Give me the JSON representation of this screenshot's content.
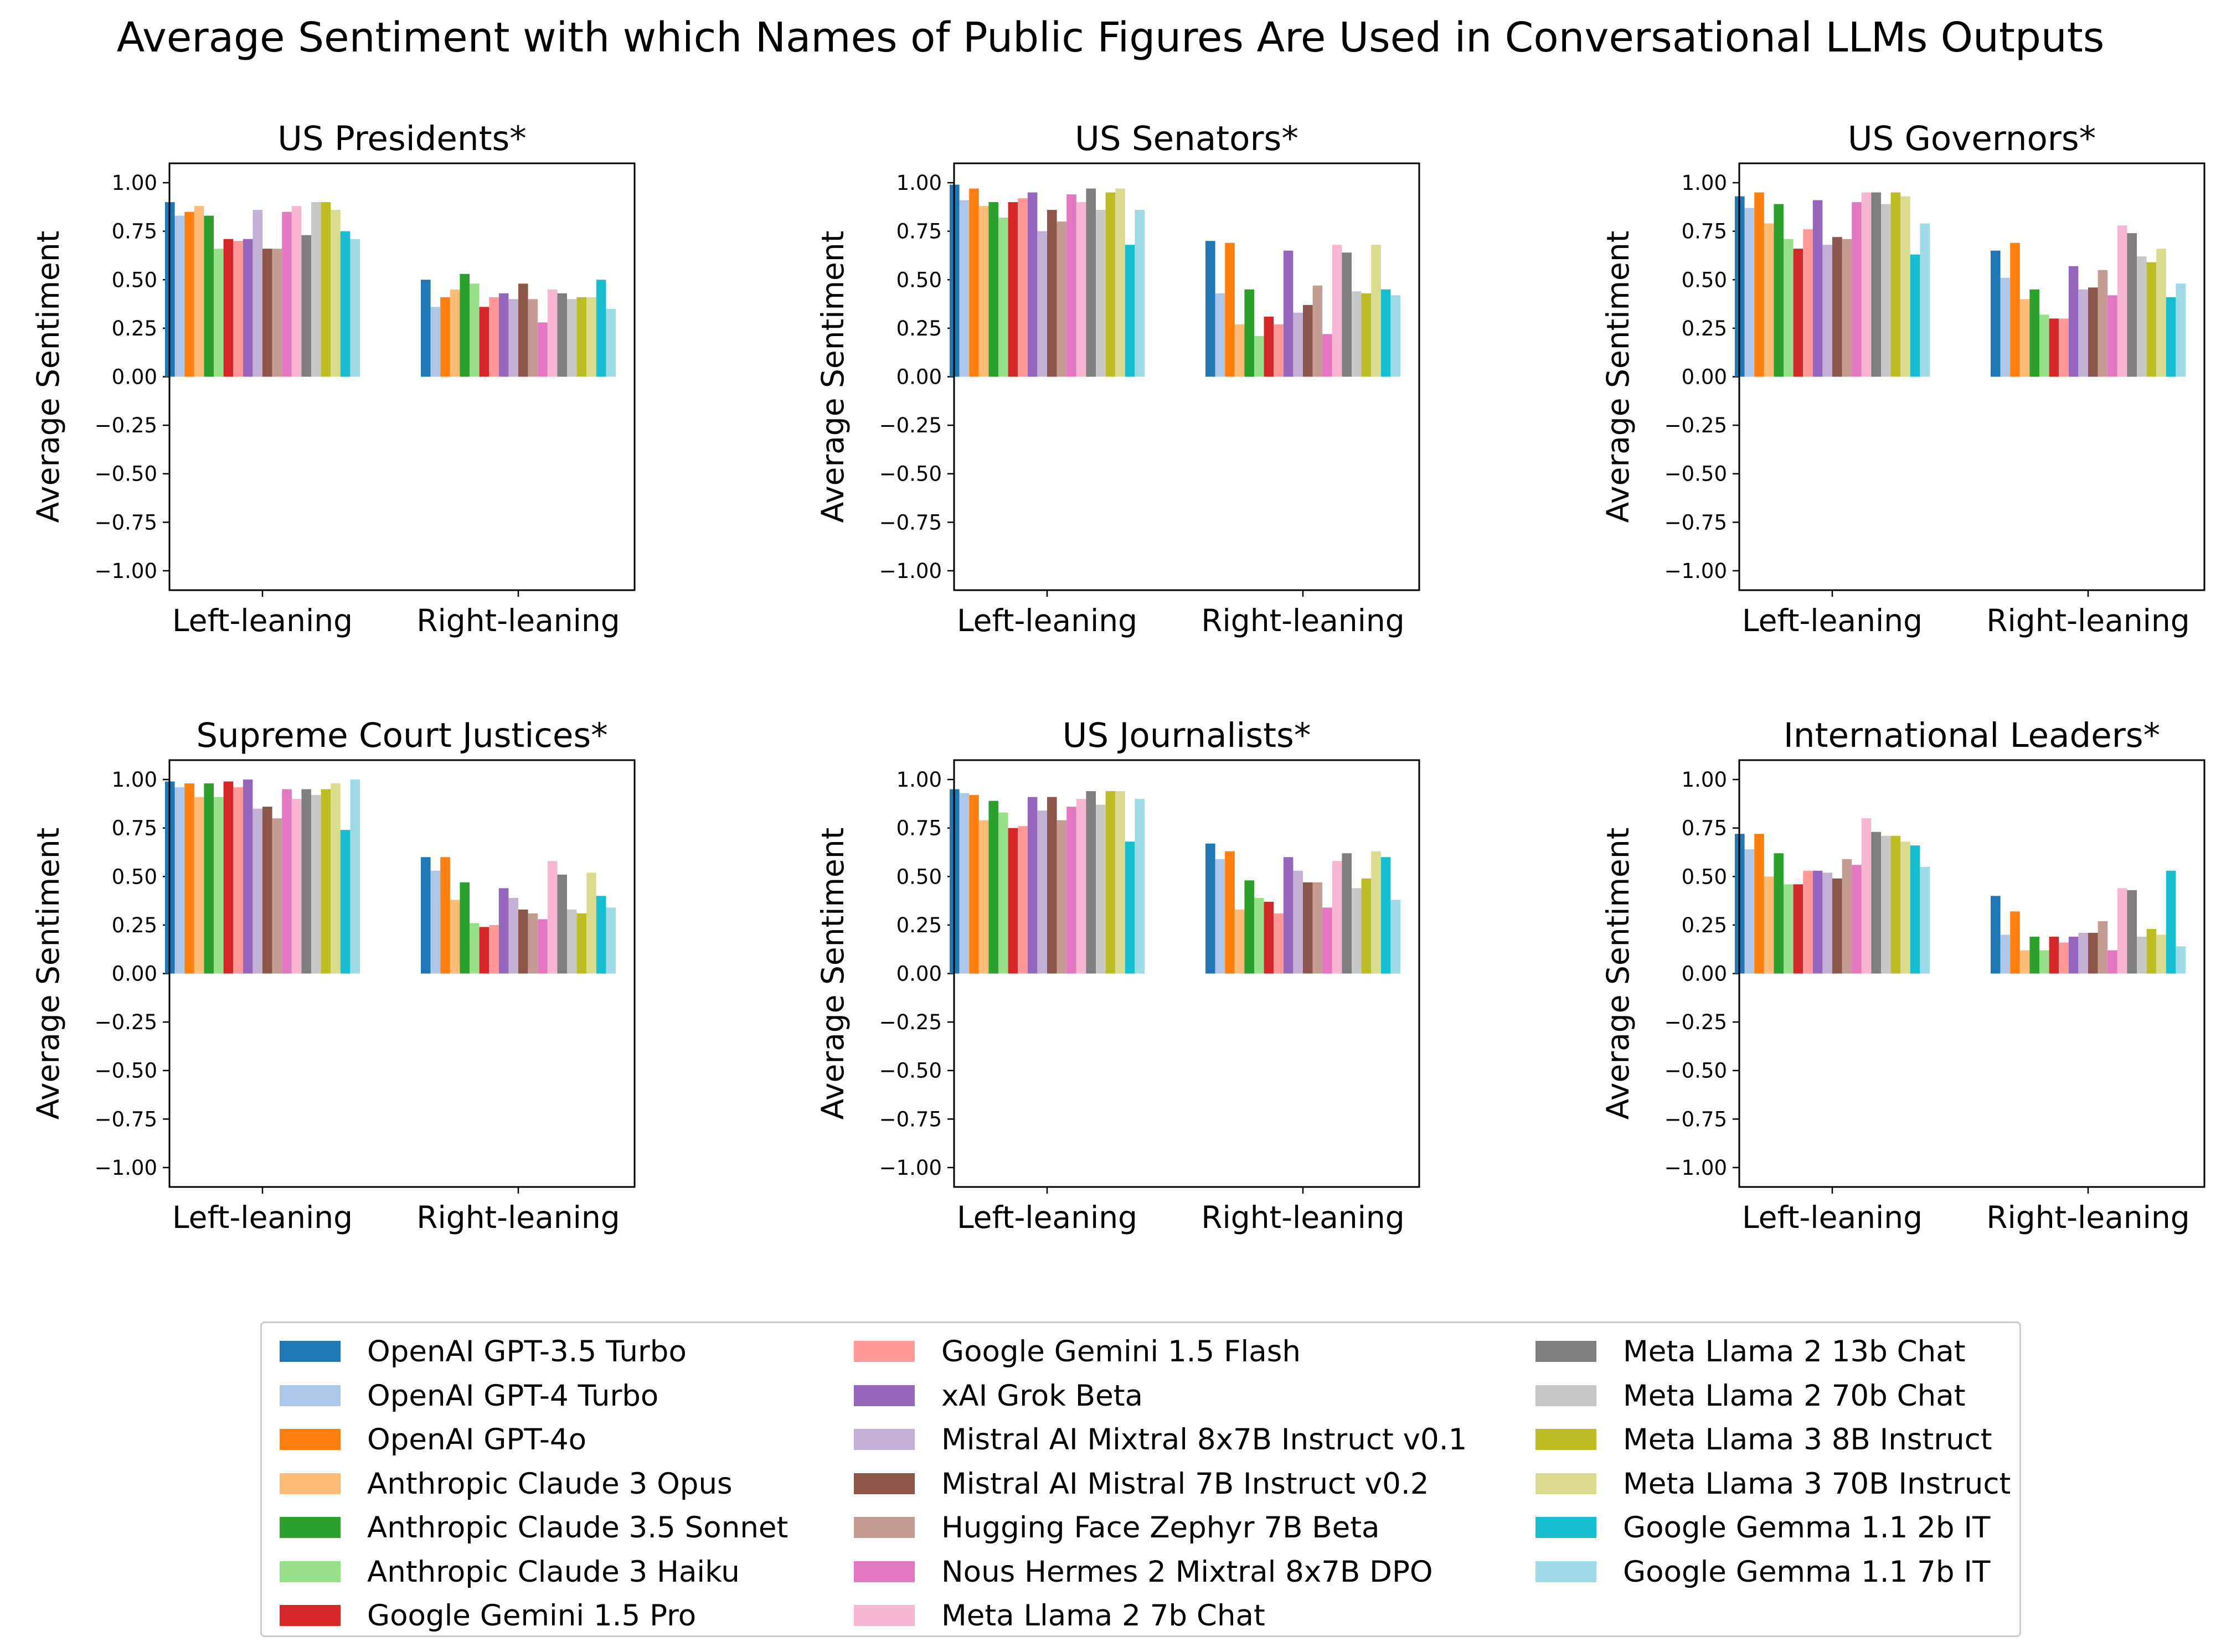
{
  "chart_data": {
    "type": "bar",
    "title": "Average Sentiment with which Names of Public Figures Are Used in Conversational LLMs Outputs",
    "ylabel": "Average Sentiment",
    "ylim": [
      -1.1,
      1.1
    ],
    "yticks": [
      "1.00",
      "0.75",
      "0.50",
      "0.25",
      "0.00",
      "−0.25",
      "−0.50",
      "−0.75",
      "−1.00"
    ],
    "categories": [
      "Left-leaning",
      "Right-leaning"
    ],
    "legend_placement": "bottom-center",
    "series": [
      {
        "name": "OpenAI GPT-3.5 Turbo",
        "color": "#1f77b4"
      },
      {
        "name": "OpenAI GPT-4 Turbo",
        "color": "#aec7e8"
      },
      {
        "name": "OpenAI GPT-4o",
        "color": "#ff7f0e"
      },
      {
        "name": "Anthropic Claude 3 Opus",
        "color": "#ffbb78"
      },
      {
        "name": "Anthropic Claude 3.5 Sonnet",
        "color": "#2ca02c"
      },
      {
        "name": "Anthropic Claude 3 Haiku",
        "color": "#98df8a"
      },
      {
        "name": "Google Gemini 1.5 Pro",
        "color": "#d62728"
      },
      {
        "name": "Google Gemini 1.5 Flash",
        "color": "#ff9896"
      },
      {
        "name": "xAI Grok Beta",
        "color": "#9467bd"
      },
      {
        "name": "Mistral AI Mixtral 8x7B Instruct v0.1",
        "color": "#c5b0d5"
      },
      {
        "name": "Mistral AI Mistral 7B Instruct v0.2",
        "color": "#8c564b"
      },
      {
        "name": "Hugging Face Zephyr 7B Beta",
        "color": "#c49c94"
      },
      {
        "name": "Nous Hermes 2 Mixtral 8x7B DPO",
        "color": "#e377c2"
      },
      {
        "name": "Meta Llama 2 7b Chat",
        "color": "#f7b6d2"
      },
      {
        "name": "Meta Llama 2 13b Chat",
        "color": "#7f7f7f"
      },
      {
        "name": "Meta Llama 2 70b Chat",
        "color": "#c7c7c7"
      },
      {
        "name": "Meta Llama 3 8B Instruct",
        "color": "#bcbd22"
      },
      {
        "name": "Meta Llama 3 70B Instruct",
        "color": "#dbdb8d"
      },
      {
        "name": "Google Gemma 1.1 2b IT",
        "color": "#17becf"
      },
      {
        "name": "Google Gemma 1.1 7b IT",
        "color": "#9edae5"
      }
    ],
    "panels": [
      {
        "title": "US Presidents*",
        "left": [
          0.9,
          0.83,
          0.85,
          0.88,
          0.83,
          0.66,
          0.71,
          0.7,
          0.71,
          0.86,
          0.66,
          0.66,
          0.85,
          0.88,
          0.73,
          0.9,
          0.9,
          0.86,
          0.75,
          0.71
        ],
        "right": [
          0.5,
          0.36,
          0.41,
          0.45,
          0.53,
          0.48,
          0.36,
          0.41,
          0.43,
          0.4,
          0.48,
          0.4,
          0.28,
          0.45,
          0.43,
          0.4,
          0.41,
          0.41,
          0.5,
          0.35
        ]
      },
      {
        "title": "US Senators*",
        "left": [
          0.99,
          0.91,
          0.97,
          0.88,
          0.9,
          0.82,
          0.9,
          0.92,
          0.95,
          0.75,
          0.86,
          0.8,
          0.94,
          0.9,
          0.97,
          0.86,
          0.95,
          0.97,
          0.68,
          0.86
        ],
        "right": [
          0.7,
          0.43,
          0.69,
          0.27,
          0.45,
          0.21,
          0.31,
          0.27,
          0.65,
          0.33,
          0.37,
          0.47,
          0.22,
          0.68,
          0.64,
          0.44,
          0.43,
          0.68,
          0.45,
          0.42
        ]
      },
      {
        "title": "US Governors*",
        "left": [
          0.93,
          0.87,
          0.95,
          0.79,
          0.89,
          0.71,
          0.66,
          0.76,
          0.91,
          0.68,
          0.72,
          0.71,
          0.9,
          0.95,
          0.95,
          0.89,
          0.95,
          0.93,
          0.63,
          0.79
        ],
        "right": [
          0.65,
          0.51,
          0.69,
          0.4,
          0.45,
          0.32,
          0.3,
          0.3,
          0.57,
          0.45,
          0.46,
          0.55,
          0.42,
          0.78,
          0.74,
          0.62,
          0.59,
          0.66,
          0.41,
          0.48
        ]
      },
      {
        "title": "Supreme Court Justices*",
        "left": [
          0.99,
          0.96,
          0.98,
          0.91,
          0.98,
          0.91,
          0.99,
          0.96,
          1.0,
          0.85,
          0.86,
          0.8,
          0.95,
          0.9,
          0.95,
          0.92,
          0.95,
          0.98,
          0.74,
          1.0
        ],
        "right": [
          0.6,
          0.53,
          0.6,
          0.38,
          0.47,
          0.26,
          0.24,
          0.25,
          0.44,
          0.39,
          0.33,
          0.31,
          0.28,
          0.58,
          0.51,
          0.33,
          0.31,
          0.52,
          0.4,
          0.34
        ]
      },
      {
        "title": "US Journalists*",
        "left": [
          0.95,
          0.93,
          0.92,
          0.79,
          0.89,
          0.83,
          0.75,
          0.76,
          0.91,
          0.84,
          0.91,
          0.79,
          0.86,
          0.9,
          0.94,
          0.87,
          0.94,
          0.94,
          0.68,
          0.9
        ],
        "right": [
          0.67,
          0.59,
          0.63,
          0.33,
          0.48,
          0.39,
          0.37,
          0.31,
          0.6,
          0.53,
          0.47,
          0.47,
          0.34,
          0.58,
          0.62,
          0.44,
          0.49,
          0.63,
          0.6,
          0.38
        ]
      },
      {
        "title": "International Leaders*",
        "left": [
          0.72,
          0.64,
          0.72,
          0.5,
          0.62,
          0.46,
          0.46,
          0.53,
          0.53,
          0.52,
          0.49,
          0.59,
          0.56,
          0.8,
          0.73,
          0.71,
          0.71,
          0.68,
          0.66,
          0.55
        ],
        "right": [
          0.4,
          0.2,
          0.32,
          0.12,
          0.19,
          0.12,
          0.19,
          0.16,
          0.19,
          0.21,
          0.21,
          0.27,
          0.12,
          0.44,
          0.43,
          0.19,
          0.23,
          0.2,
          0.53,
          0.14
        ]
      }
    ]
  }
}
